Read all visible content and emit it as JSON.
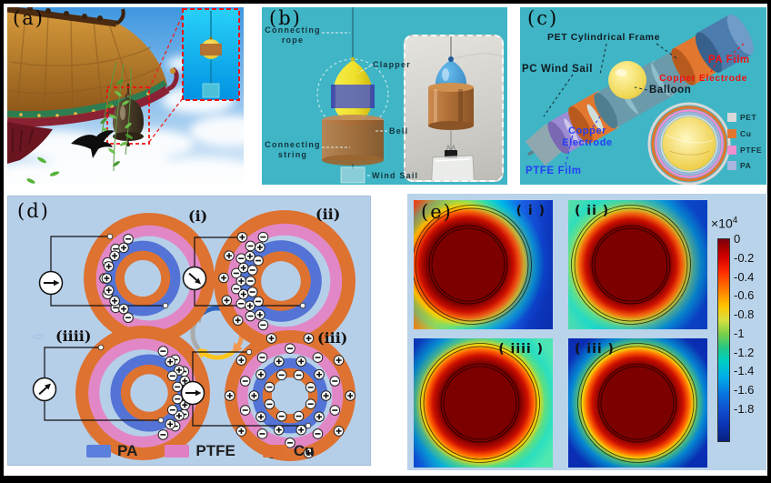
{
  "panels": {
    "a_label": "(a)",
    "b_label": "(b)",
    "c_label": "(c)",
    "d_label": "(d)",
    "e_label": "(e)"
  },
  "panel_b": {
    "labels": {
      "connecting_rope": "Connecting rope",
      "clapper": "Clapper",
      "bell": "Bell",
      "connecting_string": "Connecting string",
      "wind_sail": "Wind Sail"
    }
  },
  "panel_c": {
    "labels": {
      "pet_frame": "PET Cylindrical Frame",
      "pa_film": "PA Film",
      "copper_electrode_top": "Copper Electrode",
      "pc_wind_sail": "PC Wind Sail",
      "balloon": "Balloon",
      "copper_electrode_bottom": "Copper Electrode",
      "ptfe_film": "PTFE Film"
    },
    "legend": [
      {
        "label": "PET",
        "color": "#d9d9d9"
      },
      {
        "label": "Cu",
        "color": "#e2772f"
      },
      {
        "label": "PTFE",
        "color": "#ee8fd0"
      },
      {
        "label": "PA",
        "color": "#aab6de"
      }
    ]
  },
  "panel_d": {
    "sublabels": {
      "i": "(i)",
      "ii": "(ii)",
      "iiii": "(iiii)",
      "iii": "(iii)"
    },
    "legend": [
      {
        "label": "PA",
        "color": "#5b7fdd"
      },
      {
        "label": "PTFE",
        "color": "#e07fc4"
      },
      {
        "label": "Cu",
        "color": "#df7130"
      }
    ]
  },
  "panel_e": {
    "sublabels": {
      "i": "( i )",
      "ii": "( ii )",
      "iiii": "( iiii )",
      "iii": "( iii )"
    },
    "colorbar": {
      "title_base": "×10",
      "title_exp": "4",
      "ticks": [
        "0",
        "-0.2",
        "-0.4",
        "-0.6",
        "-0.8",
        "-1",
        "-1.2",
        "-1.4",
        "-1.6",
        "-1.8"
      ]
    }
  },
  "chart_data": {
    "type": "heatmap",
    "panels": [
      "( i )",
      "( ii )",
      "( iiii )",
      "( iii )"
    ],
    "colorbar_multiplier": 10000,
    "colorbar_ticks": [
      0,
      -0.2,
      -0.4,
      -0.6,
      -0.8,
      -1,
      -1.2,
      -1.4,
      -1.6,
      -1.8
    ],
    "value_range": [
      -20000,
      0
    ],
    "legend_position": "right",
    "notes_visible_in_image": "four simulated electric-potential maps of concentric cylinder device; hot (dark red) core, jet colormap to dark blue"
  }
}
